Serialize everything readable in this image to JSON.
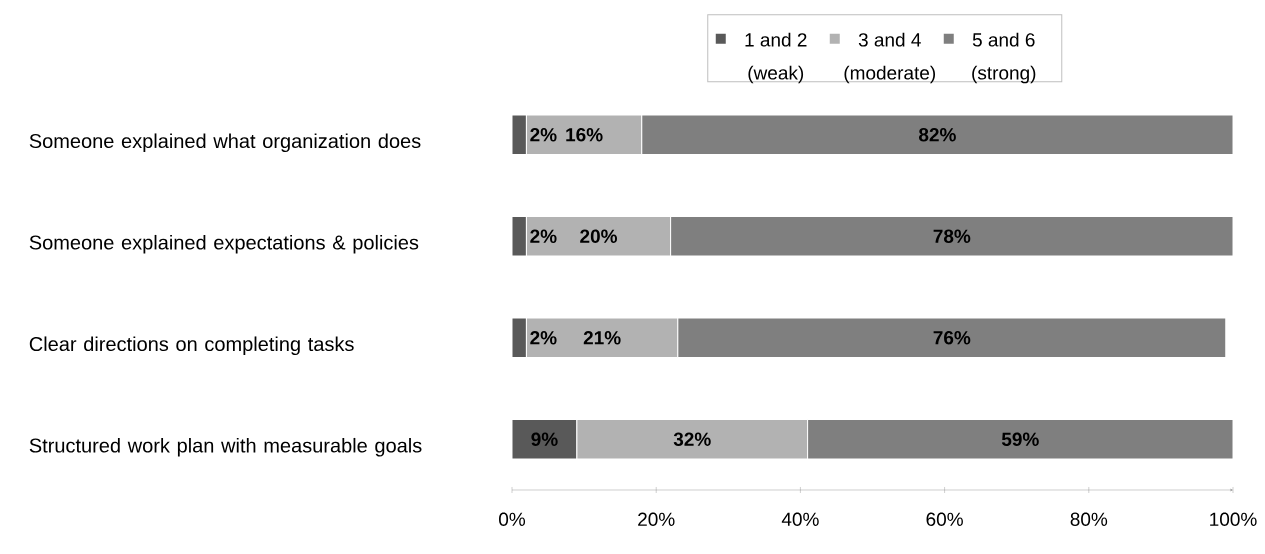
{
  "chart_data": {
    "type": "bar",
    "orientation": "horizontal",
    "stacked": true,
    "categories": [
      "Someone explained what organization does",
      "Someone explained expectations & policies",
      "Clear directions on completing tasks",
      "Structured work plan with measurable goals"
    ],
    "series": [
      {
        "name": "1 and 2 (weak)",
        "color": "#595959",
        "values": [
          2,
          2,
          2,
          9
        ],
        "value_labels": [
          "2%",
          "2%",
          "2%",
          "9%"
        ]
      },
      {
        "name": "3 and 4 (moderate)",
        "color": "#b2b2b2",
        "values": [
          16,
          20,
          21,
          32
        ],
        "value_labels": [
          "16%",
          "20%",
          "21%",
          "32%"
        ]
      },
      {
        "name": "5 and 6 (strong)",
        "color": "#7f7f7f",
        "values": [
          82,
          78,
          76,
          59
        ],
        "value_labels": [
          "82%",
          "78%",
          "76%",
          "59%"
        ]
      }
    ],
    "xlim": [
      0,
      100
    ],
    "xticks": [
      {
        "value": 0,
        "label": "0%"
      },
      {
        "value": 20,
        "label": "20%"
      },
      {
        "value": 40,
        "label": "40%"
      },
      {
        "value": 60,
        "label": "60%"
      },
      {
        "value": 80,
        "label": "80%"
      },
      {
        "value": 100,
        "label": "100%"
      }
    ],
    "legend": "top"
  }
}
